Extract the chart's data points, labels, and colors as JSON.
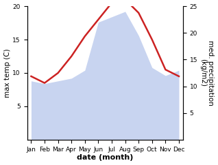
{
  "months": [
    "Jan",
    "Feb",
    "Mar",
    "Apr",
    "May",
    "Jun",
    "Jul",
    "Aug",
    "Sep",
    "Oct",
    "Nov",
    "Dec"
  ],
  "temp_max": [
    9.5,
    8.5,
    10.0,
    12.5,
    15.5,
    18.0,
    20.5,
    21.0,
    19.0,
    15.0,
    10.5,
    9.5
  ],
  "precip": [
    11.0,
    10.5,
    11.0,
    11.5,
    13.0,
    22.0,
    23.0,
    24.0,
    19.5,
    13.5,
    12.0,
    13.0
  ],
  "temp_color": "#cc2222",
  "precip_fill_color": "#c8d4f0",
  "left_ylabel": "max temp (C)",
  "right_ylabel": "med. precipitation\n(kg/m2)",
  "xlabel": "date (month)",
  "left_ylim": [
    0,
    20
  ],
  "right_ylim": [
    0,
    25
  ],
  "left_yticks": [
    5,
    10,
    15,
    20
  ],
  "right_yticks": [
    5,
    10,
    15,
    20,
    25
  ],
  "background_color": "#ffffff",
  "label_fontsize": 7.5,
  "tick_fontsize": 6.5,
  "xlabel_fontsize": 8
}
